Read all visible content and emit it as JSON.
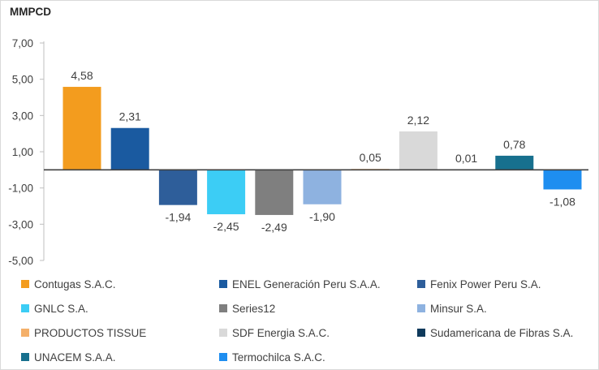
{
  "chart_data": {
    "type": "bar",
    "unit_label": "MMPCD",
    "categories": [
      "Contugas S.A.C.",
      "ENEL Generación Peru S.A.A.",
      "Fenix Power Peru S.A.",
      "GNLC S.A.",
      "Series12",
      "Minsur S.A.",
      "PRODUCTOS TISSUE",
      "SDF Energia S.A.C.",
      "Sudamericana de Fibras S.A.",
      "UNACEM S.A.A.",
      "Termochilca S.A.C."
    ],
    "values": [
      4.58,
      2.31,
      -1.94,
      -2.45,
      -2.49,
      -1.9,
      0.05,
      2.12,
      0.01,
      0.78,
      -1.08
    ],
    "data_labels": [
      "4,58",
      "2,31",
      "-1,94",
      "-2,45",
      "-2,49",
      "-1,90",
      "0,05",
      "2,12",
      "0,01",
      "0,78",
      "-1,08"
    ],
    "colors": [
      "#f39c1e",
      "#1a5aa0",
      "#2e5e9a",
      "#3ccdf5",
      "#7f7f7f",
      "#8eb2e0",
      "#f4b06a",
      "#d9d9d9",
      "#0f3a5c",
      "#17708e",
      "#1e8ef0"
    ],
    "ylim": [
      -5,
      7
    ],
    "yticks": [
      -5,
      -3,
      -1,
      1,
      3,
      5,
      7
    ],
    "ytick_labels": [
      "-5,00",
      "-3,00",
      "-1,00",
      "1,00",
      "3,00",
      "5,00",
      "7,00"
    ],
    "legend": {
      "position": "bottom",
      "entries": [
        "Contugas S.A.C.",
        "ENEL Generación Peru S.A.A.",
        "Fenix Power Peru S.A.",
        "GNLC S.A.",
        "Series12",
        "Minsur S.A.",
        "PRODUCTOS TISSUE",
        "SDF Energia S.A.C.",
        "Sudamericana de Fibras S.A.",
        "UNACEM S.A.A.",
        "Termochilca S.A.C."
      ]
    }
  }
}
